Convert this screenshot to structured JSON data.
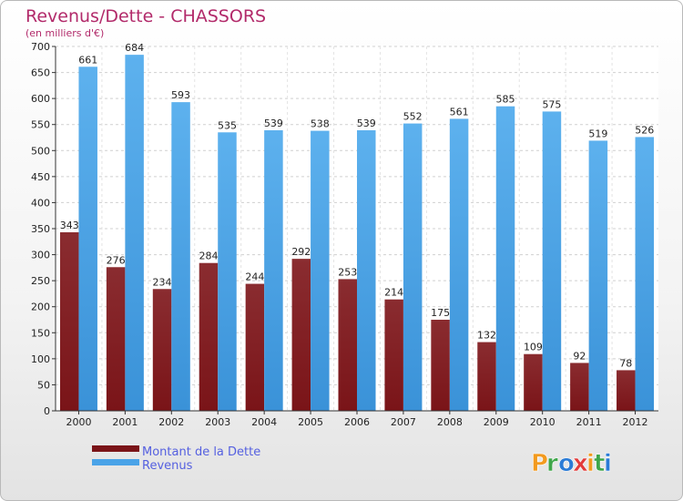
{
  "chart_data": {
    "type": "bar",
    "title": "Revenus/Dette - CHASSORS",
    "subtitle": "(en milliers d'€)",
    "categories": [
      "2000",
      "2001",
      "2002",
      "2003",
      "2004",
      "2005",
      "2006",
      "2007",
      "2008",
      "2009",
      "2010",
      "2011",
      "2012"
    ],
    "series": [
      {
        "name": "Montant de la Dette",
        "color": "#7a1418",
        "values": [
          343,
          276,
          234,
          284,
          244,
          292,
          253,
          214,
          175,
          132,
          109,
          92,
          78
        ]
      },
      {
        "name": "Revenus",
        "color": "#4aa3e8",
        "values": [
          661,
          684,
          593,
          535,
          539,
          538,
          539,
          552,
          561,
          585,
          575,
          519,
          526
        ]
      }
    ],
    "ylim": [
      0,
      700
    ],
    "yticks": [
      0,
      50,
      100,
      150,
      200,
      250,
      300,
      350,
      400,
      450,
      500,
      550,
      600,
      650,
      700
    ],
    "grid": true,
    "legend": "bottom-left"
  },
  "logo": {
    "text": "Proxiti",
    "colors": [
      "#f29a1f",
      "#3fa64a",
      "#2a7bd6",
      "#e23b3b"
    ]
  }
}
